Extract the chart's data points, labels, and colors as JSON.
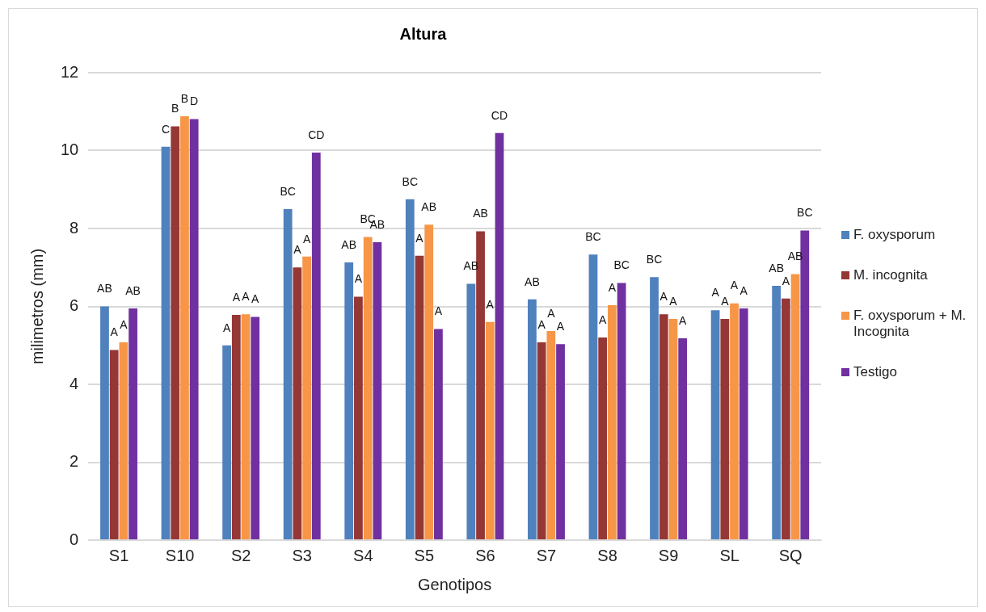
{
  "chart_data": {
    "type": "bar",
    "title": "Altura",
    "xlabel": "Genotipos",
    "ylabel": "milimetros (mm)",
    "categories": [
      "S1",
      "S10",
      "S2",
      "S3",
      "S4",
      "S5",
      "S6",
      "S7",
      "S8",
      "S9",
      "SL",
      "SQ"
    ],
    "series": [
      {
        "name": "F. oxysporum",
        "color": "#4f81bd",
        "values": [
          6.0,
          10.1,
          5.0,
          8.5,
          7.13,
          8.75,
          6.58,
          6.18,
          7.33,
          6.75,
          5.9,
          6.53
        ],
        "value_labels": [
          "AB",
          "C",
          "A",
          "BC",
          "AB",
          "BC",
          "AB",
          "AB",
          "BC",
          "BC",
          "A",
          "AB"
        ]
      },
      {
        "name": "M. incognita",
        "color": "#953735",
        "values": [
          4.88,
          10.62,
          5.78,
          7.0,
          6.25,
          7.3,
          7.93,
          5.08,
          5.2,
          5.8,
          5.68,
          6.2
        ],
        "value_labels": [
          "A",
          "B",
          "A",
          "A",
          "A",
          "A",
          "AB",
          "A",
          "A",
          "A",
          "A",
          "A"
        ]
      },
      {
        "name": "F. oxysporum + M. Incognita",
        "color": "#f79646",
        "values": [
          5.08,
          10.88,
          5.8,
          7.28,
          7.78,
          8.1,
          5.6,
          5.37,
          6.03,
          5.68,
          6.08,
          6.83
        ],
        "value_labels": [
          "A",
          "B",
          "A",
          "A",
          "BC",
          "AB",
          "A",
          "A",
          "A",
          "A",
          "A",
          "AB"
        ]
      },
      {
        "name": "Testigo",
        "color": "#7030a0",
        "values": [
          5.95,
          10.81,
          5.73,
          9.95,
          7.65,
          5.42,
          10.45,
          5.03,
          6.6,
          5.18,
          5.95,
          7.95
        ],
        "value_labels": [
          "AB",
          "D",
          "A",
          "CD",
          "AB",
          "A",
          "CD",
          "A",
          "BC",
          "A",
          "A",
          "BC"
        ]
      }
    ],
    "ylim": [
      0,
      12
    ],
    "yticks": [
      0,
      2,
      4,
      6,
      8,
      10,
      12
    ],
    "grid": "y",
    "legend": "right"
  }
}
